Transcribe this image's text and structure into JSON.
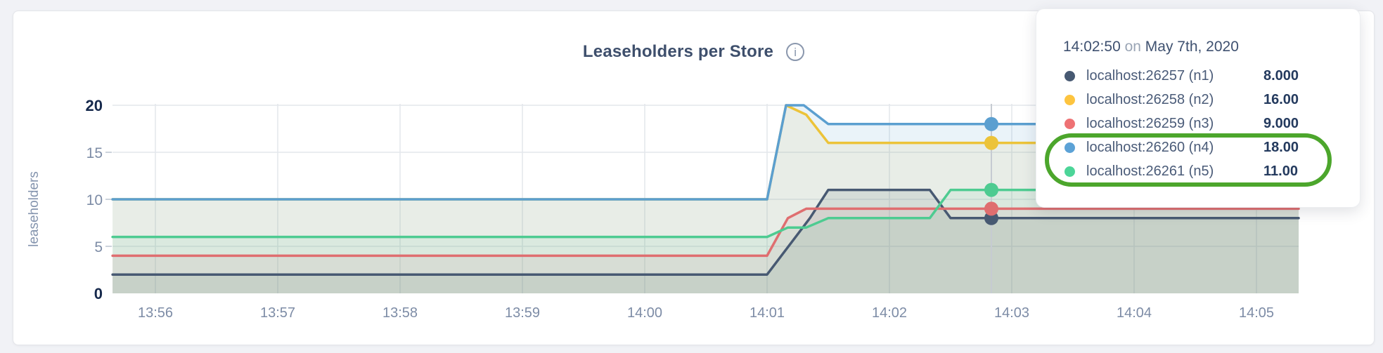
{
  "chart_data": {
    "type": "area",
    "title": "Leaseholders per Store",
    "ylabel": "leaseholders",
    "xlabel": "",
    "ylim": [
      0,
      20
    ],
    "yticks": [
      0,
      5,
      10,
      15,
      20
    ],
    "grid": true,
    "xticklabels": [
      "13:56",
      "13:57",
      "13:58",
      "13:59",
      "14:00",
      "14:01",
      "14:02",
      "14:03",
      "14:04",
      "14:05"
    ],
    "x_unit": "minutes after 13:56",
    "series": [
      {
        "name": "localhost:26257 (n1)",
        "color": "#475972",
        "points": [
          [
            -0.35,
            2
          ],
          [
            5.0,
            2
          ],
          [
            5.35,
            8
          ],
          [
            5.5,
            11
          ],
          [
            6.33,
            11
          ],
          [
            6.5,
            8
          ],
          [
            9.345,
            8
          ]
        ]
      },
      {
        "name": "localhost:26258 (n2)",
        "color": "#ecc339",
        "points": [
          [
            -0.35,
            10
          ],
          [
            5.0,
            10
          ],
          [
            5.155,
            20
          ],
          [
            5.32,
            19
          ],
          [
            5.5,
            16
          ],
          [
            9.345,
            16
          ]
        ]
      },
      {
        "name": "localhost:26259 (n3)",
        "color": "#df6e70",
        "points": [
          [
            -0.35,
            4
          ],
          [
            5.0,
            4
          ],
          [
            5.17,
            8
          ],
          [
            5.32,
            9
          ],
          [
            9.345,
            9
          ]
        ]
      },
      {
        "name": "localhost:26260 (n4)",
        "color": "#5b9fd0",
        "points": [
          [
            -0.35,
            10
          ],
          [
            5.0,
            10
          ],
          [
            5.155,
            20
          ],
          [
            5.3,
            20
          ],
          [
            5.5,
            18
          ],
          [
            9.345,
            18
          ]
        ]
      },
      {
        "name": "localhost:26261 (n5)",
        "color": "#4ecb91",
        "points": [
          [
            -0.35,
            6
          ],
          [
            5.0,
            6
          ],
          [
            5.17,
            7
          ],
          [
            5.32,
            7
          ],
          [
            5.5,
            8
          ],
          [
            6.33,
            8
          ],
          [
            6.5,
            11
          ],
          [
            9.345,
            11
          ]
        ]
      }
    ],
    "hover": {
      "t": 6.8333,
      "time": "14:02:50",
      "values": {
        "n1": 8,
        "n2": 16,
        "n3": 9,
        "n4": 18,
        "n5": 11
      }
    }
  },
  "tooltip": {
    "time": "14:02:50",
    "conj": "on",
    "date": "May 7th, 2020",
    "rows": [
      {
        "label": "localhost:26257 (n1)",
        "value": "8.000",
        "num": 8,
        "color": "#475972"
      },
      {
        "label": "localhost:26258 (n2)",
        "value": "16.00",
        "num": 16,
        "color": "#fdc43f"
      },
      {
        "label": "localhost:26259 (n3)",
        "value": "9.000",
        "num": 9,
        "color": "#ee7274"
      },
      {
        "label": "localhost:26260 (n4)",
        "value": "18.00",
        "num": 18,
        "color": "#5ca2d6"
      },
      {
        "label": "localhost:26261 (n5)",
        "value": "11.00",
        "num": 11,
        "color": "#4cd598"
      }
    ],
    "highlighted_rows": [
      3,
      4
    ],
    "highlight_color": "#4ca62c"
  },
  "info_icon": {
    "glyph": "i"
  }
}
